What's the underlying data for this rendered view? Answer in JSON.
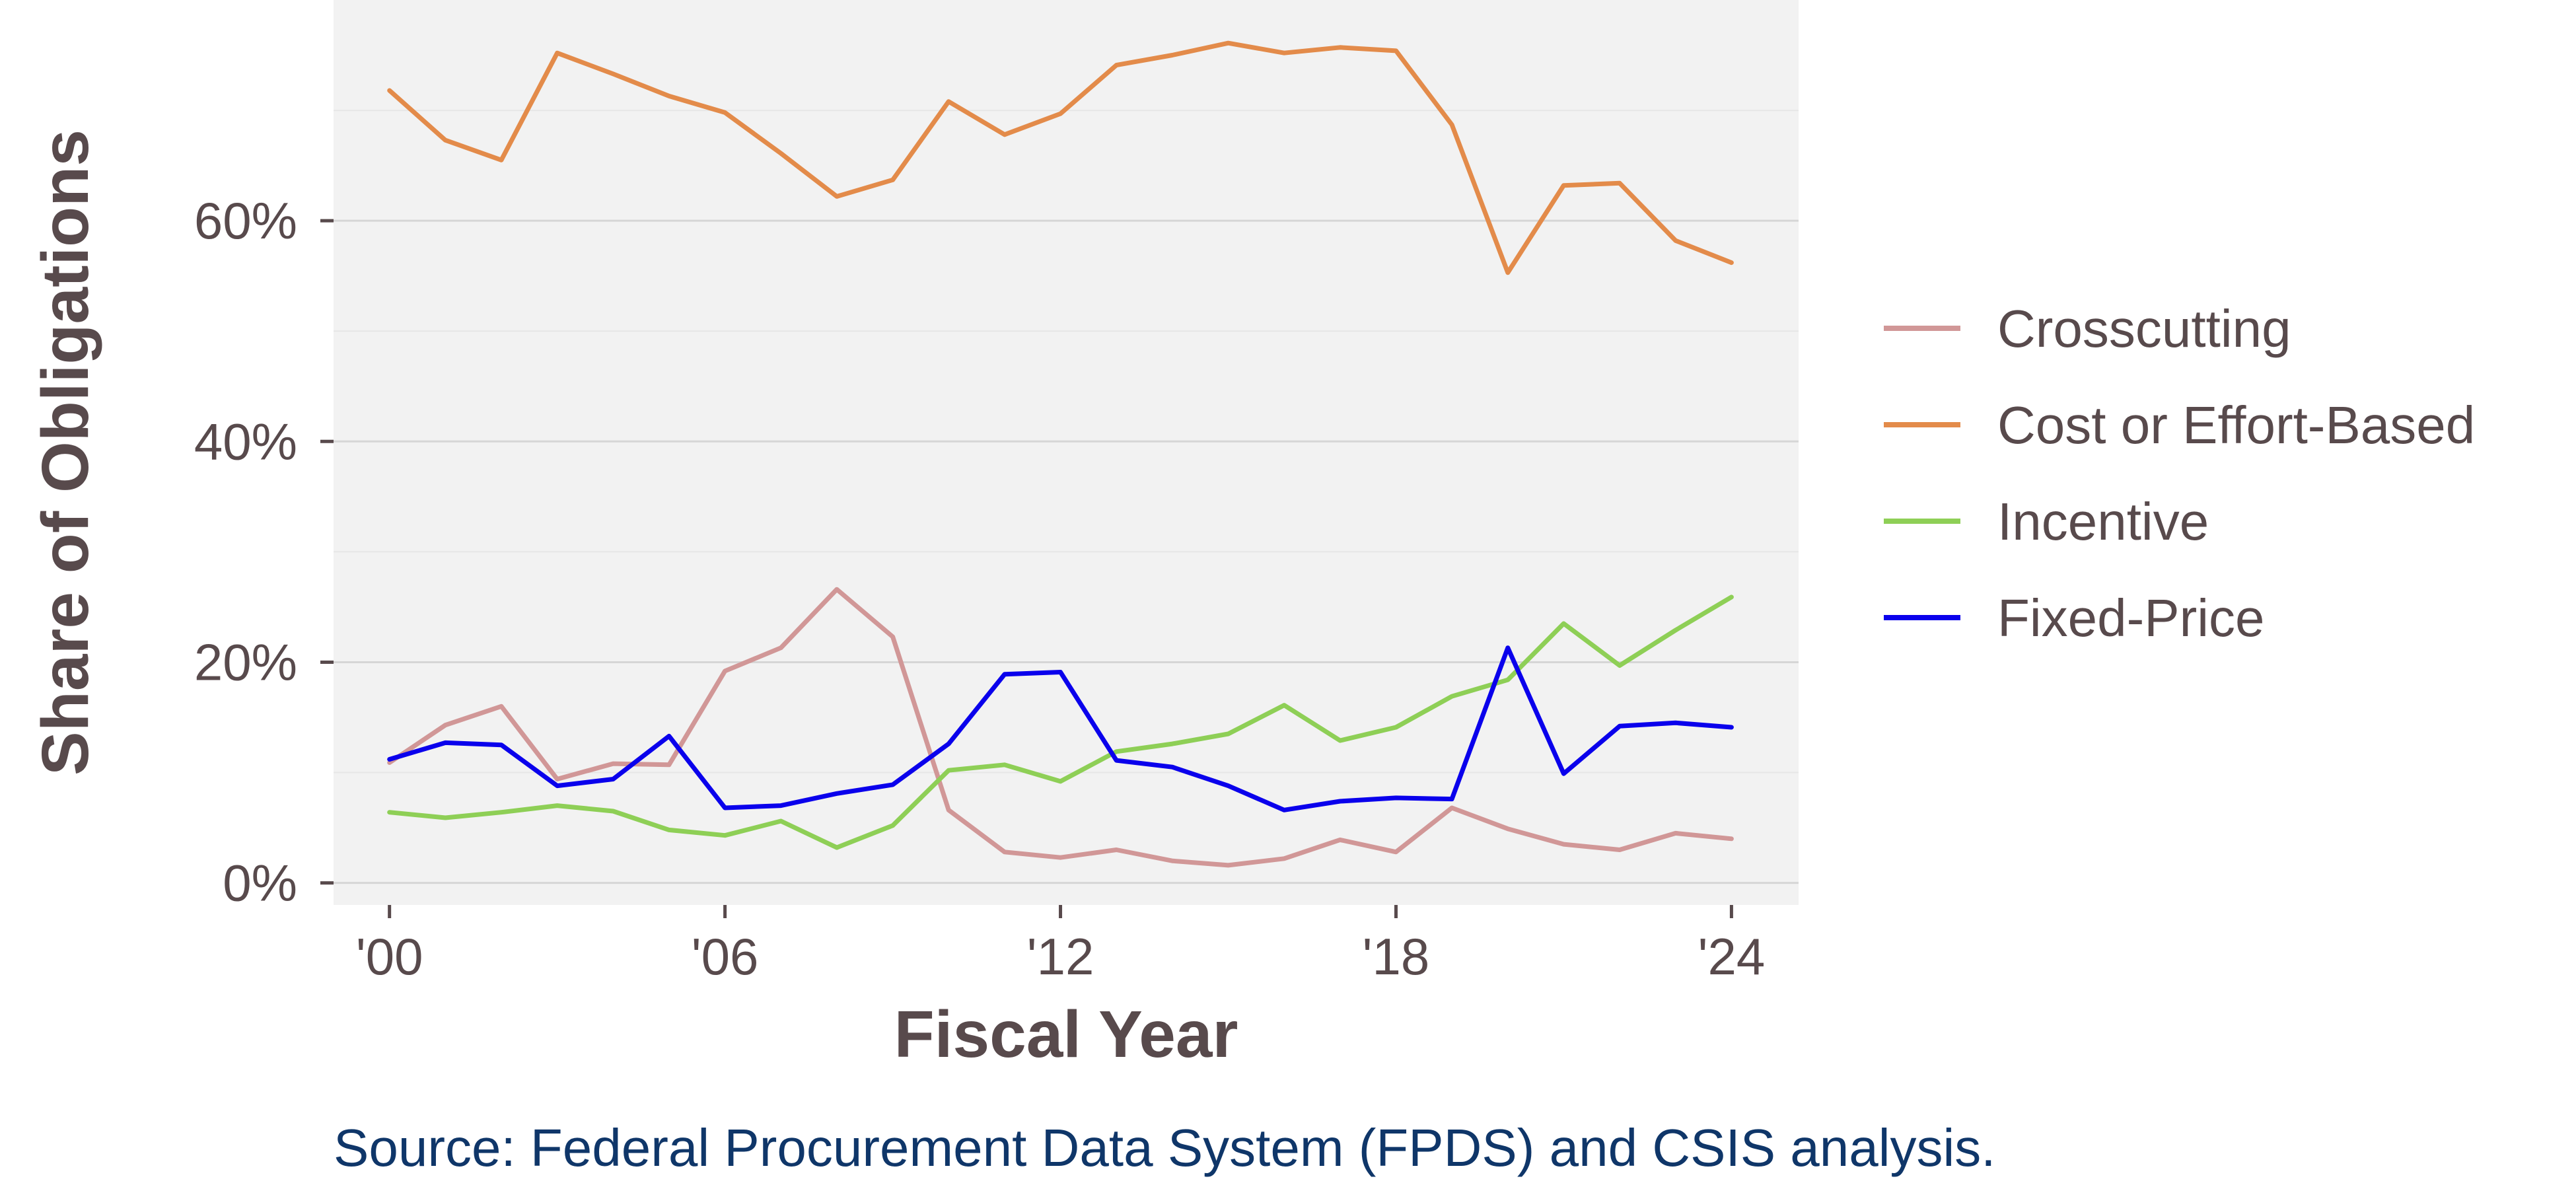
{
  "chart_data": {
    "type": "line",
    "xlabel": "Fiscal Year",
    "ylabel": "Share of Obligations",
    "source": "Source: Federal Procurement Data System (FPDS) and CSIS analysis.",
    "x": [
      2000,
      2001,
      2002,
      2003,
      2004,
      2005,
      2006,
      2007,
      2008,
      2009,
      2010,
      2011,
      2012,
      2013,
      2014,
      2015,
      2016,
      2017,
      2018,
      2019,
      2020,
      2021,
      2022,
      2023,
      2024
    ],
    "xlim": [
      1999,
      2025.2
    ],
    "ylim": [
      -0.02,
      0.8
    ],
    "x_ticks": [
      {
        "value": 2000,
        "label": "'00"
      },
      {
        "value": 2006,
        "label": "'06"
      },
      {
        "value": 2012,
        "label": "'12"
      },
      {
        "value": 2018,
        "label": "'18"
      },
      {
        "value": 2024,
        "label": "'24"
      }
    ],
    "y_ticks": [
      {
        "value": 0.0,
        "label": "0%"
      },
      {
        "value": 0.2,
        "label": "20%"
      },
      {
        "value": 0.4,
        "label": "40%"
      },
      {
        "value": 0.6,
        "label": "60%"
      }
    ],
    "minor_grid": [
      0.1,
      0.3,
      0.5,
      0.7
    ],
    "grid": true,
    "legend_position": "right",
    "colors": {
      "panel_background": "#f2f2f2",
      "grid_major": "#d6d6d6",
      "grid_minor": "#e6e6e6",
      "axis_text": "#584a4c",
      "source_text": "#0f3669"
    },
    "series": [
      {
        "name": "Crosscutting",
        "color": "#d19797",
        "values": [
          0.109,
          0.143,
          0.16,
          0.094,
          0.108,
          0.107,
          0.192,
          0.213,
          0.266,
          0.223,
          0.066,
          0.028,
          0.023,
          0.03,
          0.02,
          0.016,
          0.022,
          0.039,
          0.028,
          0.068,
          0.049,
          0.035,
          0.03,
          0.045,
          0.04
        ]
      },
      {
        "name": "Cost or Effort-Based",
        "color": "#e38b4a",
        "values": [
          0.718,
          0.673,
          0.655,
          0.752,
          0.733,
          0.713,
          0.698,
          0.661,
          0.622,
          0.637,
          0.708,
          0.678,
          0.697,
          0.741,
          0.75,
          0.761,
          0.752,
          0.757,
          0.754,
          0.687,
          0.553,
          0.632,
          0.634,
          0.582,
          0.562
        ]
      },
      {
        "name": "Incentive",
        "color": "#8ecf56",
        "values": [
          0.064,
          0.059,
          0.064,
          0.07,
          0.065,
          0.048,
          0.043,
          0.056,
          0.032,
          0.052,
          0.102,
          0.107,
          0.092,
          0.119,
          0.126,
          0.135,
          0.161,
          0.129,
          0.141,
          0.169,
          0.184,
          0.235,
          0.197,
          0.229,
          0.259
        ]
      },
      {
        "name": "Fixed-Price",
        "color": "#0a00ec",
        "values": [
          0.112,
          0.127,
          0.125,
          0.088,
          0.094,
          0.133,
          0.068,
          0.07,
          0.081,
          0.089,
          0.126,
          0.189,
          0.191,
          0.111,
          0.105,
          0.088,
          0.066,
          0.074,
          0.077,
          0.076,
          0.213,
          0.099,
          0.142,
          0.145,
          0.141
        ]
      }
    ]
  }
}
